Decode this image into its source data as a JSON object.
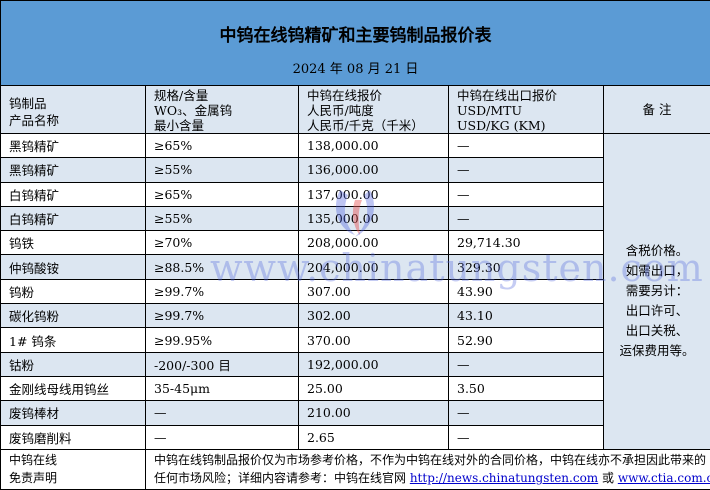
{
  "title": "中钨在线钨精矿和主要钨制品报价表",
  "date": "2024 年 08 月 21 日",
  "headers": {
    "col1": [
      "钨制品",
      "产品名称"
    ],
    "col2": [
      "规格/含量",
      "WO₃、金属钨",
      "最小含量"
    ],
    "col3": [
      "中钨在线报价",
      "人民币/吨度",
      "人民币/千克（千米）"
    ],
    "col4": [
      "中钨在线出口报价",
      "USD/MTU",
      "USD/KG (KM)"
    ],
    "col5": "备 注"
  },
  "rows": [
    {
      "name": "黑钨精矿",
      "spec": "≥65%",
      "price": "138,000.00",
      "export": "—"
    },
    {
      "name": "黑钨精矿",
      "spec": "≥55%",
      "price": "136,000.00",
      "export": "—"
    },
    {
      "name": "白钨精矿",
      "spec": "≥65%",
      "price": "137,000.00",
      "export": "—"
    },
    {
      "name": "白钨精矿",
      "spec": "≥55%",
      "price": "135,000.00",
      "export": "—"
    },
    {
      "name": "钨铁",
      "spec": "≥70%",
      "price": "208,000.00",
      "export": "29,714.30"
    },
    {
      "name": "仲钨酸铵",
      "spec": "≥88.5%",
      "price": "204,000.00",
      "export": "329.30"
    },
    {
      "name": "钨粉",
      "spec": "≥99.7%",
      "price": "307.00",
      "export": "43.90"
    },
    {
      "name": "碳化钨粉",
      "spec": "≥99.7%",
      "price": "302.00",
      "export": "43.10"
    },
    {
      "name": "1# 钨条",
      "spec": "≥99.95%",
      "price": "370.00",
      "export": "52.90"
    },
    {
      "name": "钴粉",
      "spec": "-200/-300 目",
      "price": "192,000.00",
      "export": "—"
    },
    {
      "name": "金刚线母线用钨丝",
      "spec": "35-45μm",
      "price": "25.00",
      "export": "3.50"
    },
    {
      "name": "废钨棒材",
      "spec": "—",
      "price": "210.00",
      "export": "—"
    },
    {
      "name": "废钨磨削料",
      "spec": "—",
      "price": "2.65",
      "export": "—"
    }
  ],
  "remark": [
    "含税价格。",
    "如需出口，",
    "需要另计：",
    "出口许可、",
    "出口关税、",
    "运保费用等。"
  ],
  "footer": {
    "label": [
      "中钨在线",
      "免责声明"
    ],
    "line1": "中钨在线钨制品报价仅为市场参考价格，不作为中钨在线对外的合同价格，中钨在线亦不承担因此带来的",
    "line2_prefix": "任何市场风险；详细内容请参考：中钨在线官网 ",
    "link1": "http://news.chinatungsten.com",
    "or": " 或 ",
    "link2": "www.ctia.com.cn",
    "end": "。"
  },
  "watermark": "www.chinatungsten.com",
  "colors": {
    "title_bg": "#5b9bd5",
    "alt_row": "#dce6f1"
  }
}
